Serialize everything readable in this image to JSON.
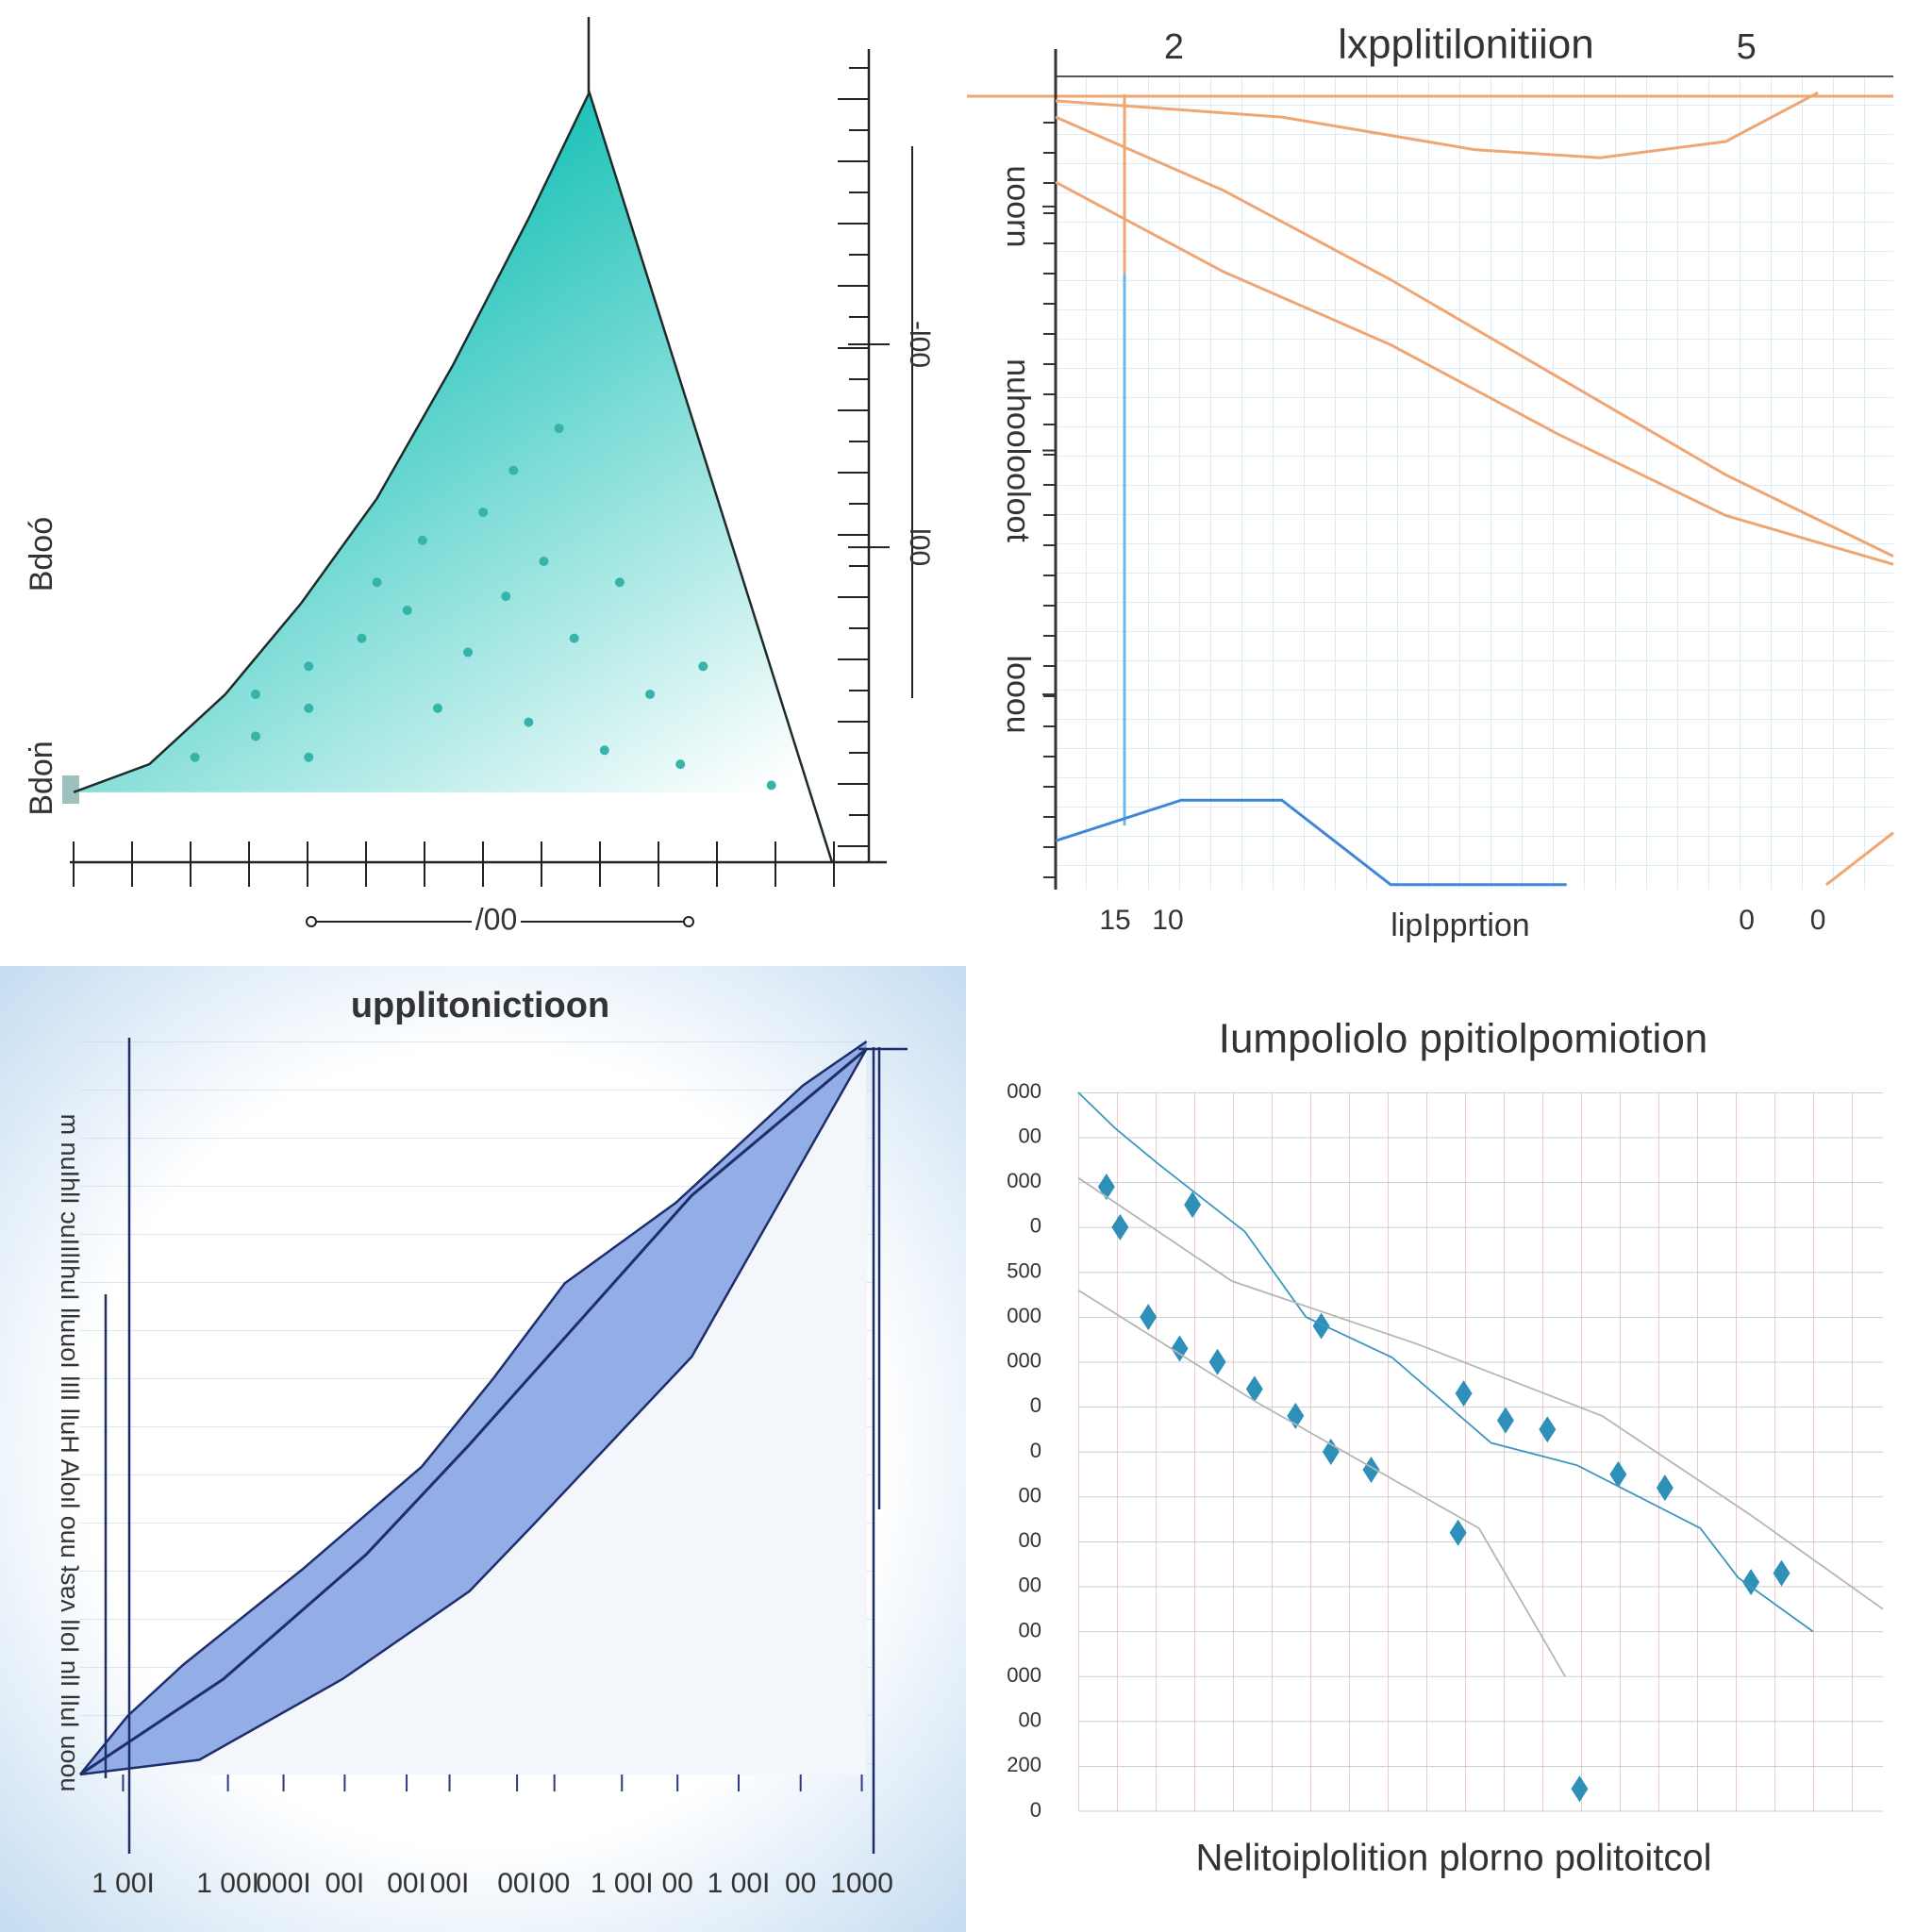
{
  "chart_data": [
    {
      "type": "area",
      "xlabel": "/00",
      "xlim": [
        0,
        100
      ],
      "ylim": [
        -10,
        100
      ],
      "yticks": [
        {
          "value": 2,
          "label": "Bdoṅ"
        },
        {
          "value": 34,
          "label": "Bdoó"
        }
      ],
      "ytick_rotation": -90,
      "y2lim": [
        -10,
        100
      ],
      "y2ticks": [
        {
          "value": 35,
          "label": "l00"
        },
        {
          "value": 64,
          "label": "-l00"
        }
      ],
      "y2tick_rotation": 90,
      "y2tick_color": "#2e9e7e",
      "edge_color": "#1d2b2b",
      "series": [
        {
          "color": "#12bfb5",
          "x": [
            0,
            10,
            20,
            30,
            40,
            50,
            60,
            68,
            84,
            100
          ],
          "values": [
            0,
            4,
            14,
            27,
            42,
            61,
            82,
            100,
            45,
            -10
          ]
        },
        {
          "type": "scatter",
          "color": "#36b3aa",
          "x": [
            16,
            24,
            24,
            31,
            31,
            31,
            38,
            40,
            44,
            46,
            48,
            52,
            54,
            57,
            58,
            60,
            62,
            64,
            66,
            70,
            72,
            76,
            80,
            83,
            92
          ],
          "values": [
            5,
            8,
            14,
            5,
            12,
            18,
            22,
            30,
            26,
            36,
            12,
            20,
            40,
            28,
            46,
            10,
            33,
            52,
            22,
            6,
            30,
            14,
            4,
            18,
            1
          ]
        }
      ]
    },
    {
      "type": "line",
      "title": "lxpplitilonitiion",
      "xlabel": "lipIpprtion",
      "xlim": [
        0,
        100
      ],
      "ylim": [
        0,
        100
      ],
      "xticks": [
        {
          "value": 7.1,
          "label": "15"
        },
        {
          "value": 13.4,
          "label": "10"
        },
        {
          "value": 82.5,
          "label": "0"
        },
        {
          "value": 91,
          "label": "0"
        }
      ],
      "x2lim": [
        1.38,
        5.77
      ],
      "x2ticks": [
        2,
        5
      ],
      "yticks": [
        {
          "value": 84,
          "label": "uoorn"
        },
        {
          "value": 54,
          "label": "nuhoolooloot"
        },
        {
          "value": 24,
          "label": "looou"
        }
      ],
      "ytick_rotation": 90,
      "grid": true,
      "series": [
        {
          "color": "#f0a672",
          "x": [
            0,
            20,
            40,
            60,
            80,
            100
          ],
          "values": [
            95,
            86,
            75,
            63,
            51,
            41
          ]
        },
        {
          "color": "#f0a672",
          "x": [
            0,
            20,
            40,
            60,
            80,
            100
          ],
          "values": [
            87,
            76,
            67,
            56,
            46,
            40
          ]
        },
        {
          "color": "#f0a672",
          "x": [
            0,
            27,
            50,
            65,
            80,
            91
          ],
          "values": [
            97,
            95,
            91,
            90,
            92,
            98
          ]
        },
        {
          "color": "#3f86d6",
          "x": [
            0,
            15,
            27,
            40,
            61
          ],
          "values": [
            6,
            11,
            11,
            0.6,
            0.6
          ]
        },
        {
          "color": "#f0a672",
          "x": [
            92,
            100
          ],
          "values": [
            0.6,
            7
          ]
        }
      ]
    },
    {
      "type": "area",
      "title": "upplitonictioon",
      "ylabel": "m nuIhlI ɔuIIlIhuI lluuoI lIlI lIuH Aloıl ouu ʇsɐʌ lIoI nlI lIuI uoou",
      "xlim": [
        0,
        100
      ],
      "ylim": [
        0,
        100
      ],
      "xticks": [
        {
          "value": 5.4,
          "label": "1 00I"
        },
        {
          "value": 18.6,
          "label": "1 00I"
        },
        {
          "value": 25.6,
          "label": "000I"
        },
        {
          "value": 33.3,
          "label": "00I"
        },
        {
          "value": 41.1,
          "label": "00I"
        },
        {
          "value": 46.5,
          "label": "00I"
        },
        {
          "value": 55,
          "label": "00I"
        },
        {
          "value": 59.7,
          "label": "00"
        },
        {
          "value": 68.2,
          "label": "1 00I"
        },
        {
          "value": 75.2,
          "label": "00"
        },
        {
          "value": 82.9,
          "label": "1 00I"
        },
        {
          "value": 90.7,
          "label": "00"
        },
        {
          "value": 98.4,
          "label": "1000"
        }
      ],
      "edge_color": "#1f2d6b",
      "series": [
        {
          "color": "#93aee6",
          "x": [
            0,
            6,
            13,
            28,
            43,
            52,
            61,
            75,
            91,
            99
          ],
          "values": [
            0,
            8,
            15,
            28,
            42,
            54,
            67,
            78,
            94,
            100
          ]
        },
        {
          "color": "#f3f7fc",
          "x": [
            0,
            15,
            33,
            49,
            57,
            77,
            99
          ],
          "values": [
            0,
            2,
            13,
            25,
            34,
            57,
            99
          ]
        },
        {
          "type": "line",
          "color": "#1f2d6b",
          "x": [
            0,
            18,
            36,
            49,
            77,
            99
          ],
          "values": [
            0,
            13,
            30,
            45,
            79,
            99
          ]
        }
      ]
    },
    {
      "type": "scatter",
      "title": "Iumpoliolo ppitiolpomiotion",
      "xlabel": "Nelitoiplolition plorno politoitcol",
      "xlim": [
        0,
        100
      ],
      "ylim": [
        16,
        0
      ],
      "ycategories": [
        "000",
        "00",
        "000",
        "0",
        "500",
        "000",
        "000",
        "0",
        "0",
        "00",
        "00",
        "00",
        "00",
        "000",
        "00",
        "200",
        "0"
      ],
      "marker": "diamond",
      "series": [
        {
          "color": "#2e8fb8",
          "x": [
            3.5,
            5.2,
            8.7,
            12.6,
            14.2,
            17.3,
            21.9,
            27,
            30.2,
            31.4,
            36.4,
            47.9,
            53.1,
            58.3,
            47.2,
            67.1,
            72.9,
            83.6,
            87.4,
            62.3
          ],
          "values": [
            2.1,
            3,
            5,
            5.7,
            2.5,
            6,
            6.6,
            7.2,
            5.2,
            8,
            8.4,
            6.7,
            7.3,
            7.5,
            9.8,
            8.5,
            8.8,
            10.9,
            10.7,
            15.5
          ]
        },
        {
          "type": "line",
          "color": "#3a97c0",
          "x": [
            0,
            4.6,
            10,
            20.7,
            28.3,
            39,
            51.3,
            62,
            77.3,
            82,
            91.3
          ],
          "values": [
            0,
            0.8,
            1.6,
            3.1,
            5,
            5.9,
            7.8,
            8.3,
            9.7,
            10.8,
            12
          ]
        },
        {
          "type": "line",
          "color": "#b5b5b5",
          "x": [
            0,
            22.2,
            49.8,
            60.5
          ],
          "values": [
            4.4,
            6.9,
            9.7,
            13
          ]
        },
        {
          "type": "line",
          "color": "#b5b5b5",
          "x": [
            0,
            19.1,
            42.1,
            65.1,
            83.5,
            100
          ],
          "values": [
            1.9,
            4.2,
            5.6,
            7.2,
            9.4,
            11.5
          ]
        }
      ]
    }
  ]
}
